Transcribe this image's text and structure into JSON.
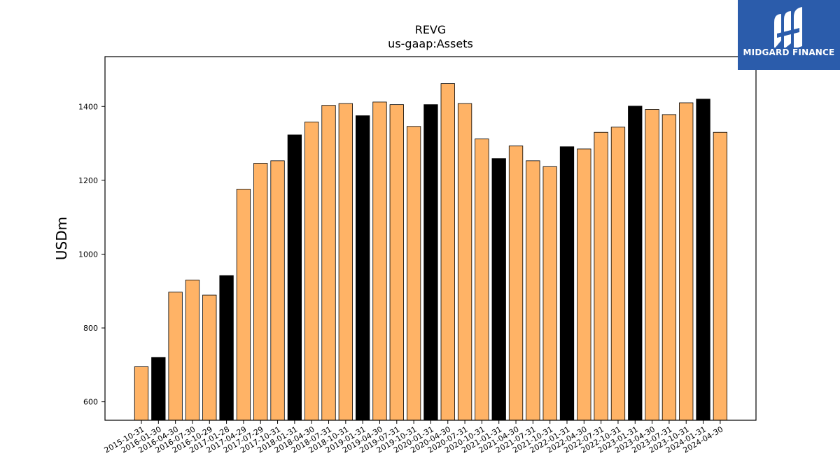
{
  "logo": {
    "text": "MIDGARD FINANCE",
    "icon": "midgard-m-icon",
    "background": "#2b5cab"
  },
  "chart_data": {
    "type": "bar",
    "title": "REVG",
    "subtitle": "us-gaap:Assets",
    "xlabel": "",
    "ylabel": "USDm",
    "ylim": [
      550,
      1535
    ],
    "yticks": [
      600,
      800,
      1000,
      1200,
      1400
    ],
    "grid": false,
    "colors": {
      "primary": "#ffb366",
      "fiscal_q1": "#000000"
    },
    "categories": [
      "2015-10-31",
      "2016-01-30",
      "2016-04-30",
      "2016-07-30",
      "2016-10-29",
      "2017-01-28",
      "2017-04-29",
      "2017-07-29",
      "2017-10-31",
      "2018-01-31",
      "2018-04-30",
      "2018-07-31",
      "2018-10-31",
      "2019-01-31",
      "2019-04-30",
      "2019-07-31",
      "2019-10-31",
      "2020-01-31",
      "2020-04-30",
      "2020-07-31",
      "2020-10-31",
      "2021-01-31",
      "2021-04-30",
      "2021-07-31",
      "2021-10-31",
      "2022-01-31",
      "2022-04-30",
      "2022-07-31",
      "2022-10-31",
      "2023-01-31",
      "2023-04-30",
      "2023-07-31",
      "2023-10-31",
      "2024-01-31",
      "2024-04-30"
    ],
    "values": [
      695,
      720,
      897,
      930,
      889,
      942,
      1176,
      1246,
      1253,
      1323,
      1358,
      1403,
      1408,
      1375,
      1412,
      1405,
      1346,
      1405,
      1462,
      1408,
      1312,
      1259,
      1293,
      1253,
      1237,
      1291,
      1285,
      1330,
      1344,
      1401,
      1392,
      1378,
      1410,
      1420,
      1330
    ],
    "highlighted": [
      false,
      true,
      false,
      false,
      false,
      true,
      false,
      false,
      false,
      true,
      false,
      false,
      false,
      true,
      false,
      false,
      false,
      true,
      false,
      false,
      false,
      true,
      false,
      false,
      false,
      true,
      false,
      false,
      false,
      true,
      false,
      false,
      false,
      true,
      false
    ]
  }
}
